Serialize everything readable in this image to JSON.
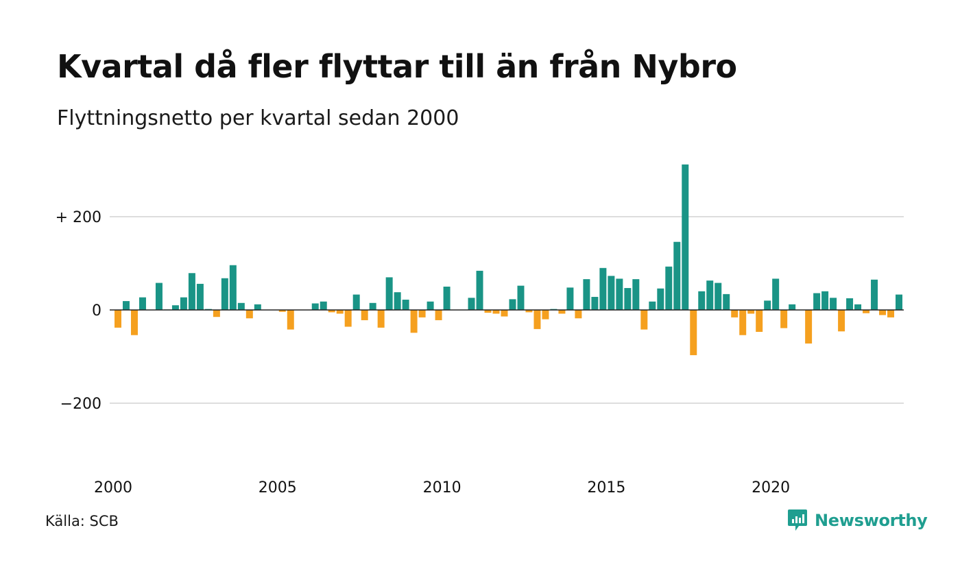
{
  "header": {
    "title": "Kvartal då fler flyttar till än från Nybro",
    "subtitle": "Flyttningsnetto per kvartal sedan 2000"
  },
  "footer": {
    "source": "Källa: SCB",
    "brand": "Newsworthy",
    "brand_icon": "newsworthy-logo-icon"
  },
  "colors": {
    "positive": "#1a9486",
    "negative": "#f5a01f",
    "grid": "#dddddd",
    "zero_line": "#222222"
  },
  "chart_data": {
    "type": "bar",
    "title": "Kvartal då fler flyttar till än från Nybro",
    "subtitle": "Flyttningsnetto per kvartal sedan 2000",
    "xlabel": "",
    "ylabel": "",
    "ylim": [
      -340,
      340
    ],
    "y_ticks": [
      {
        "value": 200,
        "label": "+ 200"
      },
      {
        "value": 0,
        "label": "0"
      },
      {
        "value": -200,
        "label": "−200"
      }
    ],
    "x_ticks": [
      {
        "value": 2000,
        "label": "2000"
      },
      {
        "value": 2005,
        "label": "2005"
      },
      {
        "value": 2010,
        "label": "2010"
      },
      {
        "value": 2015,
        "label": "2015"
      },
      {
        "value": 2020,
        "label": "2020"
      }
    ],
    "grid": true,
    "start_year": 2000,
    "categories": [
      "2000 K1",
      "2000 K2",
      "2000 K3",
      "2000 K4",
      "2001 K1",
      "2001 K2",
      "2001 K3",
      "2001 K4",
      "2002 K1",
      "2002 K2",
      "2002 K3",
      "2002 K4",
      "2003 K1",
      "2003 K2",
      "2003 K3",
      "2003 K4",
      "2004 K1",
      "2004 K2",
      "2004 K3",
      "2004 K4",
      "2005 K1",
      "2005 K2",
      "2005 K3",
      "2005 K4",
      "2006 K1",
      "2006 K2",
      "2006 K3",
      "2006 K4",
      "2007 K1",
      "2007 K2",
      "2007 K3",
      "2007 K4",
      "2008 K1",
      "2008 K2",
      "2008 K3",
      "2008 K4",
      "2009 K1",
      "2009 K2",
      "2009 K3",
      "2009 K4",
      "2010 K1",
      "2010 K2",
      "2010 K3",
      "2010 K4",
      "2011 K1",
      "2011 K2",
      "2011 K3",
      "2011 K4",
      "2012 K1",
      "2012 K2",
      "2012 K3",
      "2012 K4",
      "2013 K1",
      "2013 K2",
      "2013 K3",
      "2013 K4",
      "2014 K1",
      "2014 K2",
      "2014 K3",
      "2014 K4",
      "2015 K1",
      "2015 K2",
      "2015 K3",
      "2015 K4",
      "2016 K1",
      "2016 K2",
      "2016 K3",
      "2016 K4",
      "2017 K1",
      "2017 K2",
      "2017 K3",
      "2017 K4",
      "2018 K1",
      "2018 K2",
      "2018 K3",
      "2018 K4",
      "2019 K1",
      "2019 K2",
      "2019 K3",
      "2019 K4",
      "2020 K1",
      "2020 K2",
      "2020 K3",
      "2020 K4",
      "2021 K1",
      "2021 K2",
      "2021 K3",
      "2021 K4",
      "2022 K1",
      "2022 K2",
      "2022 K3",
      "2022 K4",
      "2023 K1",
      "2023 K2",
      "2023 K3",
      "2023 K4"
    ],
    "values": [
      -38,
      19,
      -54,
      27,
      0,
      58,
      1,
      10,
      27,
      79,
      56,
      2,
      -15,
      68,
      96,
      15,
      -18,
      12,
      0,
      0,
      -4,
      -42,
      0,
      0,
      14,
      18,
      -5,
      -8,
      -36,
      33,
      -22,
      15,
      -38,
      70,
      38,
      22,
      -49,
      -16,
      18,
      -22,
      50,
      0,
      0,
      26,
      84,
      -6,
      -8,
      -14,
      23,
      52,
      -5,
      -41,
      -20,
      2,
      -8,
      48,
      -18,
      66,
      28,
      90,
      73,
      67,
      47,
      66,
      -42,
      18,
      46,
      93,
      146,
      312,
      -97,
      40,
      63,
      58,
      34,
      -16,
      -54,
      -8,
      -47,
      20,
      67,
      -39,
      12,
      0,
      -72,
      36,
      40,
      26,
      -46,
      25,
      12,
      -7,
      65,
      -11,
      -16,
      33
    ]
  }
}
